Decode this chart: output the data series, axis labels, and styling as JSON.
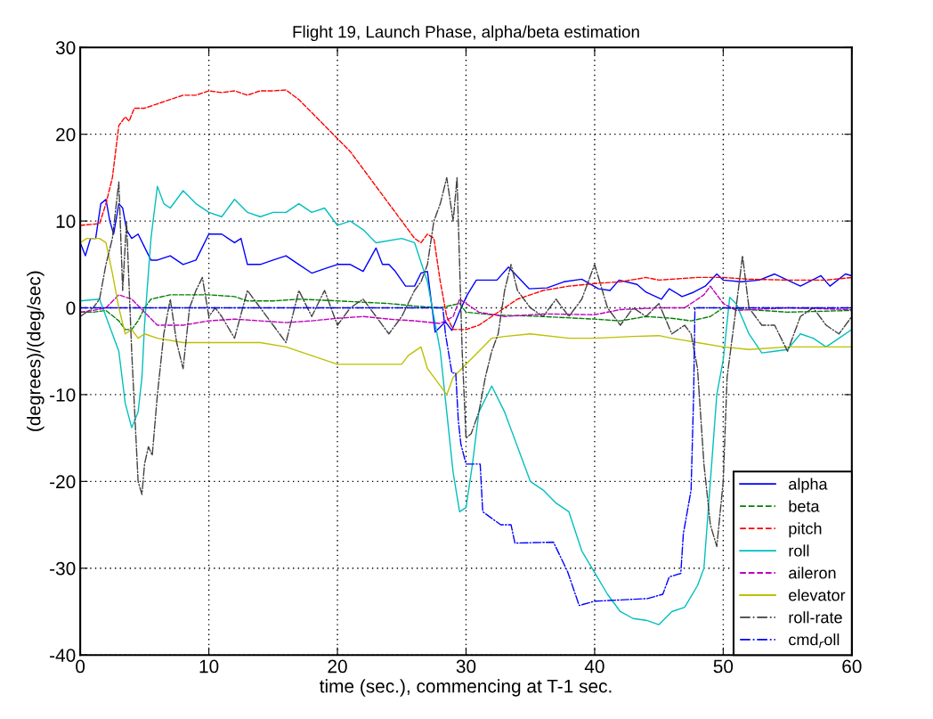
{
  "chart_data": {
    "type": "line",
    "title": "Flight 19, Launch Phase, alpha/beta estimation",
    "xlabel": "time (sec.), commencing at T-1 sec.",
    "ylabel": "(degrees)/(deg/sec)",
    "xlim": [
      0,
      60
    ],
    "xticks": [
      0,
      10,
      20,
      30,
      40,
      50,
      60
    ],
    "ylim": [
      -40,
      30
    ],
    "yticks": [
      -40,
      -30,
      -20,
      -10,
      0,
      10,
      20,
      30
    ],
    "grid": true,
    "legend": "bottom right",
    "series": [
      {
        "name": "alpha",
        "color": "#0000ff",
        "line_style": "solid",
        "x": [
          0,
          0.4,
          0.8,
          1.2,
          1.6,
          2,
          2.3,
          2.6,
          3,
          3.3,
          3.6,
          4,
          4.5,
          5,
          5.5,
          6,
          7,
          8,
          9,
          9.5,
          10,
          11,
          12,
          12.5,
          13,
          14,
          15,
          16,
          17,
          18,
          19,
          20,
          21,
          22,
          23,
          23.5,
          24,
          24.5,
          25.3,
          26,
          26.5,
          27,
          27.6,
          28.4,
          28.9,
          29.5,
          30.1,
          30.8,
          32.4,
          33.3,
          34.9,
          36.3,
          37.6,
          39,
          40.3,
          41.2,
          41.9,
          43.3,
          44,
          45.2,
          45.8,
          46.8,
          47.7,
          48.6,
          49.5,
          50,
          51.4,
          52.8,
          54,
          56,
          57.6,
          58.3,
          59.5,
          60
        ],
        "values": [
          7.5,
          6,
          8,
          8,
          12,
          12.5,
          10,
          8.5,
          12,
          11.5,
          9,
          8,
          8.5,
          7,
          5.5,
          5.5,
          6,
          5,
          5.5,
          7,
          8.5,
          8.5,
          7.5,
          8,
          5,
          5,
          5.5,
          6,
          5,
          4,
          4.5,
          5,
          5,
          4.2,
          6.9,
          5,
          5,
          4.2,
          2.5,
          2.5,
          4,
          4.2,
          -2.8,
          -1.6,
          -2.6,
          -0.4,
          1.5,
          3.2,
          3.2,
          4.7,
          2.2,
          2.3,
          3,
          3.3,
          2.2,
          2,
          3.2,
          2.7,
          1.8,
          1,
          2.2,
          1.3,
          1.8,
          2.5,
          3.9,
          3.2,
          3,
          3.2,
          3.9,
          2.5,
          3.7,
          2.5,
          3.9,
          3.7
        ]
      },
      {
        "name": "beta",
        "color": "#008000",
        "line_style": "dashed",
        "x": [
          0,
          1,
          2,
          3,
          3.5,
          4,
          4.5,
          5,
          5.5,
          7,
          10,
          12,
          13,
          15,
          17,
          20,
          24,
          26,
          28,
          29.5,
          30,
          32,
          36,
          40,
          42,
          44,
          46,
          47.5,
          49,
          50,
          52,
          55,
          60
        ],
        "values": [
          -0.5,
          -0.5,
          -0.3,
          -1.5,
          -2.5,
          -2.5,
          -1.5,
          0,
          1,
          1.5,
          1.5,
          1.3,
          0.8,
          0.8,
          1,
          0.8,
          0.5,
          0.2,
          0,
          0.5,
          -0.5,
          -0.8,
          -1,
          -1.3,
          -1.5,
          -1,
          -1.2,
          -1.5,
          -1,
          0,
          -0.2,
          -0.5,
          -0.3
        ]
      },
      {
        "name": "pitch",
        "color": "#ff0000",
        "line_style": "dashed",
        "x": [
          0,
          1.5,
          2,
          2.5,
          3,
          3.5,
          3.8,
          4.2,
          5,
          6,
          7,
          8,
          9,
          10,
          11,
          12,
          13,
          14,
          15,
          16,
          17,
          18,
          19,
          20,
          21,
          22,
          23,
          24,
          25,
          26,
          26.5,
          27,
          27.5,
          28,
          28.5,
          29,
          30,
          31,
          32,
          33,
          34,
          35,
          36,
          38,
          40,
          42,
          44,
          45,
          48,
          50,
          52,
          55,
          58,
          60
        ],
        "values": [
          9.5,
          9.7,
          12,
          15,
          21,
          22,
          21.5,
          23,
          23,
          23.5,
          24,
          24.5,
          24.5,
          25,
          24.8,
          25,
          24.5,
          25,
          25,
          25.1,
          24,
          22.5,
          21,
          19.5,
          18,
          16,
          14,
          12,
          10,
          8,
          7.5,
          8.5,
          8,
          3,
          -1,
          -2.5,
          -2.5,
          -2,
          -1,
          0,
          1,
          1.5,
          2,
          2.5,
          2.8,
          3,
          3.5,
          3.2,
          3.5,
          3.5,
          3.3,
          3.2,
          3.2,
          3.5
        ]
      },
      {
        "name": "roll",
        "color": "#00bfbf",
        "line_style": "solid",
        "x": [
          0,
          1.5,
          2,
          3,
          3.5,
          4,
          4.5,
          4.8,
          5,
          5.5,
          6,
          6.5,
          7,
          8,
          9,
          10,
          11,
          12,
          13,
          14,
          15,
          16,
          17,
          18,
          19,
          20,
          21,
          22,
          23,
          25,
          26,
          27,
          27.5,
          28,
          28.5,
          29,
          29.5,
          30,
          30.5,
          31,
          32,
          33,
          34,
          35,
          36,
          37,
          38,
          39,
          40,
          41,
          42,
          43,
          44,
          45,
          46,
          47,
          48,
          48.5,
          49,
          49.5,
          50,
          50.5,
          51,
          52,
          53,
          54,
          55,
          56,
          57,
          58,
          59,
          60
        ],
        "values": [
          0.8,
          1,
          -1,
          -5,
          -11,
          -13.8,
          -12,
          -8,
          -2,
          8,
          14,
          12,
          11.5,
          13.5,
          12,
          11,
          10.5,
          12.5,
          11,
          10.5,
          11,
          11,
          12,
          11,
          11.5,
          9.5,
          10,
          9,
          7.5,
          8,
          7.5,
          3,
          -1,
          -5,
          -12,
          -19,
          -23.5,
          -23,
          -18,
          -12,
          -9,
          -12,
          -16,
          -20,
          -21,
          -22.5,
          -23.5,
          -28,
          -30.5,
          -33,
          -35,
          -35.8,
          -36,
          -36.5,
          -35,
          -34.5,
          -32,
          -30,
          -20,
          -10,
          -6,
          1.2,
          0.5,
          -3,
          -5.2,
          -5,
          -4.8,
          -3,
          -3.5,
          -4.5,
          -3.5,
          -2.5
        ]
      },
      {
        "name": "aileron",
        "color": "#bf00bf",
        "line_style": "dashed",
        "x": [
          0,
          1,
          2,
          3,
          4,
          5,
          6,
          8,
          10,
          12,
          14,
          16,
          18,
          20,
          22,
          24,
          26,
          28,
          29,
          29.5,
          30,
          31,
          33,
          36,
          40,
          42,
          45,
          47,
          48.5,
          49,
          50,
          51,
          55,
          60
        ],
        "values": [
          -0.5,
          -0.3,
          0,
          1.5,
          1,
          -0.5,
          -2,
          -2,
          -1.5,
          -1.3,
          -1.5,
          -1.7,
          -1.5,
          -1.2,
          -1,
          -1.3,
          -1.5,
          -1.8,
          -1,
          1,
          0.5,
          -0.5,
          -1,
          -0.7,
          -0.8,
          -0.2,
          0,
          0,
          1.5,
          2.5,
          0.5,
          -0.3,
          0,
          -0.2
        ]
      },
      {
        "name": "elevator",
        "color": "#bfbf00",
        "line_style": "solid",
        "x": [
          0,
          0.5,
          1.5,
          2,
          2.5,
          3,
          3.5,
          4,
          4.5,
          5,
          6,
          8,
          10,
          12,
          14,
          16,
          18,
          20,
          22,
          24,
          25,
          25.5,
          26.5,
          27,
          28,
          28.5,
          29,
          30,
          31,
          32,
          33,
          35,
          38,
          40,
          43,
          45,
          46,
          48,
          50,
          52,
          55,
          58,
          60
        ],
        "values": [
          7.5,
          8,
          8,
          7.5,
          4,
          0,
          -3,
          -2.5,
          -3.5,
          -3,
          -3.5,
          -4,
          -4,
          -4,
          -4,
          -4.5,
          -5.5,
          -6.5,
          -6.5,
          -6.5,
          -6.5,
          -5.5,
          -4.5,
          -7,
          -9,
          -10,
          -8,
          -6.5,
          -5,
          -3.5,
          -3.3,
          -3,
          -3.5,
          -3.5,
          -3.3,
          -3.2,
          -3.5,
          -4,
          -4.5,
          -4.8,
          -4.5,
          -4.5,
          -4.5
        ]
      },
      {
        "name": "roll-rate",
        "color": "#404040",
        "line_style": "dashdot",
        "x": [
          0,
          1,
          1.5,
          2,
          2.5,
          3,
          3.3,
          3.6,
          4,
          4.5,
          4.8,
          5,
          5.3,
          5.6,
          6,
          6.5,
          7,
          7.5,
          8,
          8.5,
          9,
          9.5,
          10,
          10.5,
          11,
          12,
          13,
          14,
          15,
          16,
          17,
          18,
          19,
          20,
          21,
          22,
          23,
          24,
          25,
          26,
          26.5,
          27,
          27.5,
          28,
          28.5,
          29,
          29.3,
          29.7,
          30,
          30.4,
          31,
          31.5,
          32,
          32.5,
          33,
          33.5,
          34,
          35,
          36,
          37,
          38,
          39,
          40,
          41,
          42,
          43,
          44,
          45,
          46,
          47,
          47.5,
          48,
          48.5,
          49,
          49.5,
          50,
          50.3,
          51,
          51.5,
          52,
          53,
          54,
          55,
          56,
          57,
          58,
          59,
          60
        ],
        "values": [
          -1,
          0,
          1,
          5,
          8,
          14.5,
          2,
          10,
          -5,
          -20,
          -21.5,
          -18,
          -16,
          -17,
          -10,
          -3,
          1,
          -4,
          -7,
          0,
          2,
          3.5,
          -1,
          0,
          -1,
          -3.5,
          2,
          0,
          -2,
          -4,
          2,
          -1,
          2,
          -2,
          0,
          1,
          -1,
          -3,
          -1,
          2,
          3,
          5,
          10,
          12,
          15,
          10,
          15,
          -5,
          -15,
          -14.5,
          -12,
          -8,
          -5,
          -3,
          2,
          5,
          2,
          0,
          -1,
          1,
          -1,
          1,
          5,
          0,
          -2,
          0,
          -1,
          0.5,
          -3,
          -2,
          -3,
          -7,
          -18,
          -25,
          -27.5,
          -20,
          -8,
          0,
          6,
          0,
          -2,
          -2,
          -5,
          -1,
          0,
          -2,
          -3,
          -1
        ]
      },
      {
        "name": "cmd$_{r}$oll",
        "color": "#0000ff",
        "line_style": "dashdot",
        "x": [
          0,
          28.2,
          28.4,
          28.9,
          29.2,
          29.4,
          29.6,
          30,
          31.1,
          31.3,
          32.7,
          33.5,
          33.8,
          36.8,
          37.9,
          38.8,
          40,
          44.1,
          45.3,
          45.8,
          46.7,
          46.9,
          47.5,
          47.7,
          47.8,
          60
        ],
        "values": [
          0,
          0,
          -3,
          -7.5,
          -7.5,
          -13,
          -15.7,
          -18,
          -18,
          -23.5,
          -25,
          -25,
          -27.1,
          -27,
          -30.4,
          -34.3,
          -33.8,
          -33.5,
          -33,
          -31,
          -30.6,
          -26,
          -21,
          -10,
          0,
          0
        ]
      }
    ]
  }
}
